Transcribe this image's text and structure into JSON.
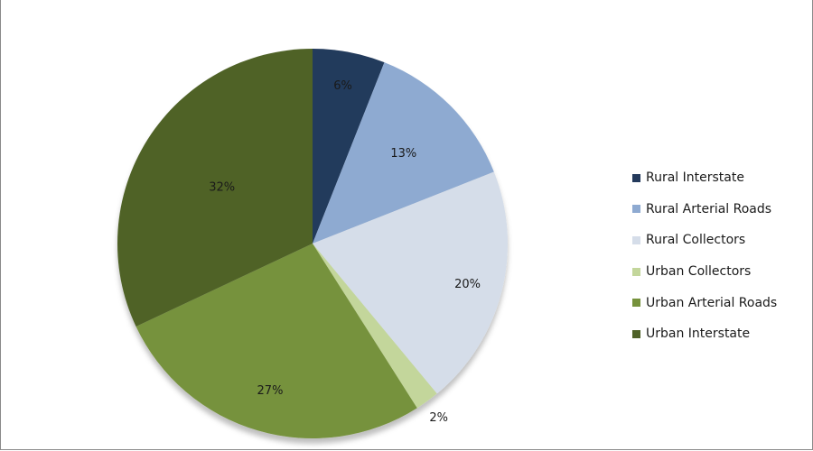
{
  "chart_data": {
    "type": "pie",
    "categories": [
      "Rural Interstate",
      "Rural Arterial Roads",
      "Rural Collectors",
      "Urban Collectors",
      "Urban Arterial Roads",
      "Urban Interstate"
    ],
    "values": [
      6,
      13,
      20,
      2,
      27,
      32
    ],
    "labels": [
      "6%",
      "13%",
      "20%",
      "2%",
      "27%",
      "32%"
    ],
    "colors": [
      "#243a5c",
      "#8eaad1",
      "#d5dde9",
      "#c3d69b",
      "#76923c",
      "#4f6228"
    ],
    "legend_position": "right"
  }
}
